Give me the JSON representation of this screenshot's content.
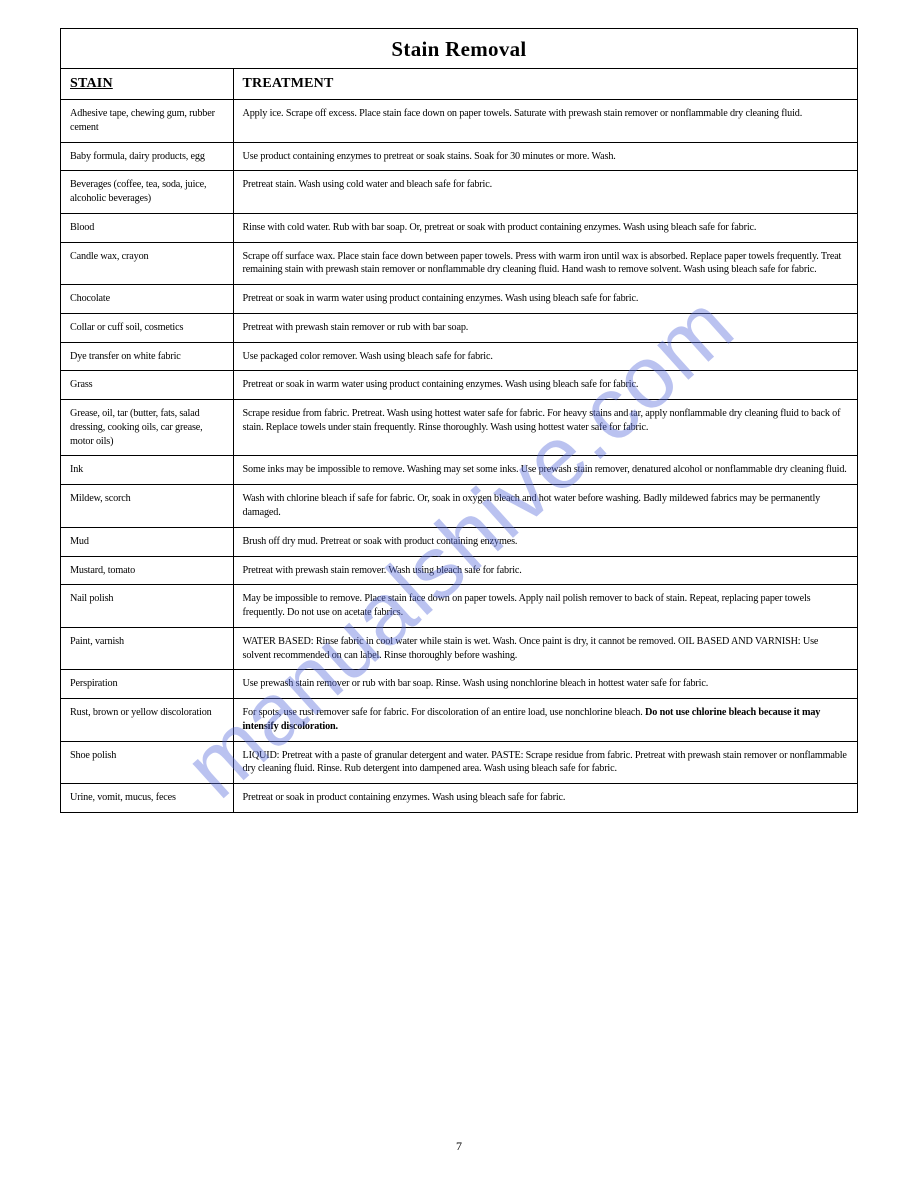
{
  "title": "Stain Removal",
  "columns": {
    "stain": "STAIN",
    "treatment": "TREATMENT"
  },
  "watermark": "manualshive.com",
  "page_number": "7",
  "rows": [
    {
      "stain": "Adhesive tape, chewing gum, rubber cement",
      "treatment": "Apply ice. Scrape off excess. Place stain face down on paper towels. Saturate with prewash stain remover or nonflammable dry cleaning fluid."
    },
    {
      "stain": "Baby formula, dairy products, egg",
      "treatment": "Use product containing enzymes to pretreat or soak stains. Soak for 30 minutes or more. Wash."
    },
    {
      "stain": "Beverages (coffee, tea, soda, juice, alcoholic beverages)",
      "treatment": "Pretreat stain. Wash using cold water and bleach safe for fabric."
    },
    {
      "stain": "Blood",
      "treatment": "Rinse with cold water. Rub with bar soap. Or, pretreat or soak with product containing enzymes. Wash using bleach safe for fabric."
    },
    {
      "stain": "Candle wax, crayon",
      "treatment": "Scrape off surface wax. Place stain face down between paper towels. Press with warm iron until wax is absorbed. Replace paper towels frequently. Treat remaining stain with prewash stain remover or nonflammable dry cleaning fluid. Hand wash to remove solvent. Wash using bleach safe for fabric."
    },
    {
      "stain": "Chocolate",
      "treatment": "Pretreat or soak in warm water using product containing enzymes. Wash using bleach safe for fabric."
    },
    {
      "stain": "Collar or cuff soil, cosmetics",
      "treatment": "Pretreat with prewash stain remover or rub with bar soap."
    },
    {
      "stain": "Dye transfer on white fabric",
      "treatment": "Use packaged color remover. Wash using bleach safe for fabric."
    },
    {
      "stain": "Grass",
      "treatment": "Pretreat or soak in warm water using product containing enzymes. Wash using bleach safe for fabric."
    },
    {
      "stain": "Grease, oil, tar (butter, fats, salad dressing, cooking oils, car grease, motor oils)",
      "treatment": "Scrape residue from fabric. Pretreat. Wash using hottest water safe for fabric. For heavy stains and tar, apply nonflammable dry cleaning fluid to back of stain. Replace towels under stain frequently. Rinse thoroughly. Wash using hottest water safe for fabric."
    },
    {
      "stain": "Ink",
      "treatment": "Some inks may be impossible to remove. Washing may set some inks. Use prewash stain remover, denatured alcohol or nonflammable dry cleaning fluid."
    },
    {
      "stain": "Mildew, scorch",
      "treatment": "Wash with chlorine bleach if safe for fabric. Or, soak in oxygen bleach and hot water before washing. Badly mildewed fabrics may be permanently damaged."
    },
    {
      "stain": "Mud",
      "treatment": "Brush off dry mud. Pretreat or soak with product containing enzymes."
    },
    {
      "stain": "Mustard, tomato",
      "treatment": "Pretreat with prewash stain remover. Wash using bleach safe for fabric."
    },
    {
      "stain": "Nail polish",
      "treatment": "May be impossible to remove. Place stain face down on paper towels. Apply nail polish remover to back of stain. Repeat, replacing paper towels frequently. Do not use on acetate fabrics."
    },
    {
      "stain": "Paint, varnish",
      "treatment": "WATER BASED: Rinse fabric in cool water while stain is wet. Wash. Once paint is dry, it cannot be removed. OIL BASED AND VARNISH: Use solvent recommended on can label. Rinse thoroughly before washing."
    },
    {
      "stain": "Perspiration",
      "treatment": "Use prewash stain remover or rub with bar soap. Rinse. Wash using nonchlorine bleach in hottest water safe for fabric."
    },
    {
      "stain": "Rust, brown or yellow discoloration",
      "treatment_pre": "For spots, use rust remover safe for fabric. For discoloration of an entire load, use nonchlorine bleach. ",
      "treatment_bold": "Do not use chlorine bleach because it may intensify discoloration."
    },
    {
      "stain": "Shoe polish",
      "treatment": "LIQUID: Pretreat with a paste of granular detergent and water. PASTE: Scrape residue from fabric. Pretreat with prewash stain remover or nonflammable dry cleaning fluid. Rinse. Rub detergent into dampened area. Wash using bleach safe for fabric."
    },
    {
      "stain": "Urine, vomit, mucus, feces",
      "treatment": "Pretreat or soak in product containing enzymes. Wash using bleach safe for fabric."
    }
  ]
}
